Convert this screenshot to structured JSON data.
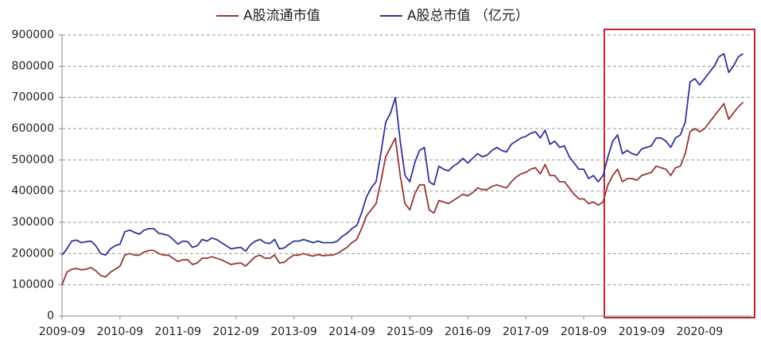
{
  "chart_data": {
    "type": "line",
    "x": [
      "2009-09",
      "2009-10",
      "2009-11",
      "2009-12",
      "2010-01",
      "2010-02",
      "2010-03",
      "2010-04",
      "2010-05",
      "2010-06",
      "2010-07",
      "2010-08",
      "2010-09",
      "2010-10",
      "2010-11",
      "2010-12",
      "2011-01",
      "2011-02",
      "2011-03",
      "2011-04",
      "2011-05",
      "2011-06",
      "2011-07",
      "2011-08",
      "2011-09",
      "2011-10",
      "2011-11",
      "2011-12",
      "2012-01",
      "2012-02",
      "2012-03",
      "2012-04",
      "2012-05",
      "2012-06",
      "2012-07",
      "2012-08",
      "2012-09",
      "2012-10",
      "2012-11",
      "2012-12",
      "2013-01",
      "2013-02",
      "2013-03",
      "2013-04",
      "2013-05",
      "2013-06",
      "2013-07",
      "2013-08",
      "2013-09",
      "2013-10",
      "2013-11",
      "2013-12",
      "2014-01",
      "2014-02",
      "2014-03",
      "2014-04",
      "2014-05",
      "2014-06",
      "2014-07",
      "2014-08",
      "2014-09",
      "2014-10",
      "2014-11",
      "2014-12",
      "2015-01",
      "2015-02",
      "2015-03",
      "2015-04",
      "2015-05",
      "2015-06",
      "2015-07",
      "2015-08",
      "2015-09",
      "2015-10",
      "2015-11",
      "2015-12",
      "2016-01",
      "2016-02",
      "2016-03",
      "2016-04",
      "2016-05",
      "2016-06",
      "2016-07",
      "2016-08",
      "2016-09",
      "2016-10",
      "2016-11",
      "2016-12",
      "2017-01",
      "2017-02",
      "2017-03",
      "2017-04",
      "2017-05",
      "2017-06",
      "2017-07",
      "2017-08",
      "2017-09",
      "2017-10",
      "2017-11",
      "2017-12",
      "2018-01",
      "2018-02",
      "2018-03",
      "2018-04",
      "2018-05",
      "2018-06",
      "2018-07",
      "2018-08",
      "2018-09",
      "2018-10",
      "2018-11",
      "2018-12",
      "2019-01",
      "2019-02",
      "2019-03",
      "2019-04",
      "2019-05",
      "2019-06",
      "2019-07",
      "2019-08",
      "2019-09",
      "2019-10",
      "2019-11",
      "2019-12",
      "2020-01",
      "2020-02",
      "2020-03",
      "2020-04",
      "2020-05",
      "2020-06",
      "2020-07",
      "2020-08",
      "2020-09",
      "2020-10",
      "2020-11",
      "2020-12",
      "2021-01",
      "2021-02",
      "2021-03",
      "2021-04",
      "2021-05",
      "2021-06"
    ],
    "series": [
      {
        "name": "A股流通市值",
        "color": "#953735",
        "values": [
          100000,
          140000,
          150000,
          152000,
          148000,
          150000,
          155000,
          145000,
          130000,
          125000,
          140000,
          150000,
          160000,
          195000,
          200000,
          195000,
          195000,
          205000,
          210000,
          210000,
          200000,
          195000,
          195000,
          185000,
          175000,
          180000,
          180000,
          165000,
          170000,
          185000,
          185000,
          190000,
          185000,
          180000,
          172000,
          165000,
          168000,
          170000,
          160000,
          175000,
          190000,
          195000,
          185000,
          185000,
          195000,
          170000,
          172000,
          185000,
          195000,
          195000,
          200000,
          195000,
          192000,
          197000,
          193000,
          195000,
          195000,
          200000,
          210000,
          220000,
          235000,
          245000,
          280000,
          320000,
          340000,
          360000,
          430000,
          510000,
          540000,
          570000,
          450000,
          360000,
          340000,
          390000,
          420000,
          420000,
          340000,
          330000,
          370000,
          365000,
          360000,
          370000,
          380000,
          390000,
          385000,
          395000,
          410000,
          405000,
          405000,
          415000,
          420000,
          415000,
          410000,
          430000,
          445000,
          455000,
          460000,
          470000,
          475000,
          455000,
          485000,
          450000,
          450000,
          430000,
          430000,
          410000,
          390000,
          375000,
          375000,
          360000,
          365000,
          355000,
          365000,
          420000,
          450000,
          470000,
          430000,
          440000,
          440000,
          435000,
          450000,
          455000,
          460000,
          480000,
          475000,
          470000,
          450000,
          475000,
          480000,
          520000,
          590000,
          600000,
          590000,
          600000,
          620000,
          640000,
          660000,
          680000,
          630000,
          650000,
          670000,
          685000
        ]
      },
      {
        "name": "A股总市值 （亿元）",
        "color": "#333399",
        "values": [
          195000,
          215000,
          240000,
          243000,
          235000,
          238000,
          240000,
          225000,
          200000,
          195000,
          215000,
          225000,
          230000,
          270000,
          275000,
          268000,
          262000,
          275000,
          280000,
          280000,
          265000,
          262000,
          258000,
          245000,
          230000,
          240000,
          238000,
          220000,
          225000,
          245000,
          240000,
          250000,
          245000,
          235000,
          225000,
          215000,
          218000,
          220000,
          208000,
          228000,
          240000,
          245000,
          235000,
          232000,
          245000,
          215000,
          218000,
          230000,
          240000,
          240000,
          245000,
          240000,
          235000,
          240000,
          235000,
          235000,
          235000,
          240000,
          255000,
          265000,
          280000,
          290000,
          330000,
          380000,
          410000,
          430000,
          520000,
          620000,
          650000,
          700000,
          560000,
          450000,
          430000,
          490000,
          530000,
          540000,
          430000,
          420000,
          480000,
          470000,
          465000,
          480000,
          490000,
          505000,
          490000,
          505000,
          520000,
          510000,
          515000,
          530000,
          540000,
          530000,
          525000,
          550000,
          560000,
          570000,
          575000,
          585000,
          590000,
          570000,
          595000,
          550000,
          560000,
          540000,
          545000,
          510000,
          490000,
          470000,
          470000,
          440000,
          450000,
          430000,
          450000,
          510000,
          560000,
          580000,
          520000,
          530000,
          520000,
          515000,
          535000,
          540000,
          545000,
          570000,
          570000,
          560000,
          540000,
          570000,
          580000,
          620000,
          750000,
          760000,
          740000,
          760000,
          780000,
          800000,
          830000,
          840000,
          780000,
          800000,
          830000,
          840000
        ]
      }
    ],
    "ylim": [
      0,
      900000
    ],
    "yticks": [
      0,
      100000,
      200000,
      300000,
      400000,
      500000,
      600000,
      700000,
      800000,
      900000
    ],
    "xticks": [
      "2009-09",
      "2010-09",
      "2011-09",
      "2012-09",
      "2013-09",
      "2014-09",
      "2015-09",
      "2016-09",
      "2017-09",
      "2018-09",
      "2019-09",
      "2020-09"
    ],
    "grid": true
  }
}
